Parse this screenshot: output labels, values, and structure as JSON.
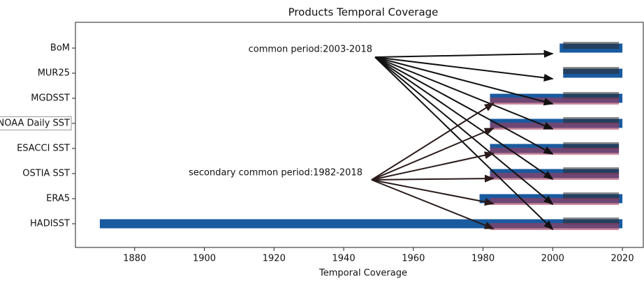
{
  "chart_data": {
    "type": "range_bar",
    "title": "Products Temporal Coverage",
    "xlabel": "Temporal Coverage",
    "categories": [
      "BoM",
      "MUR25",
      "MGDSST",
      "NOAA Daily SST",
      "ESACCI SST",
      "OSTIA SST",
      "ERA5",
      "HADISST"
    ],
    "highlight_category": 3,
    "xlim": [
      1863,
      2026
    ],
    "xticks": [
      1880,
      1900,
      1920,
      1940,
      1960,
      1980,
      2000,
      2020
    ],
    "series": [
      {
        "color": "#1a5a9e",
        "opacity": 1,
        "start": [
          2002,
          2003,
          1982,
          1982,
          1982,
          1982,
          1979,
          1870
        ],
        "end": [
          2020,
          2020,
          2020,
          2020,
          2019,
          2019,
          2020,
          2020
        ]
      },
      {
        "color": "#2b2b2b",
        "opacity": 0.55,
        "start": [
          2003,
          2003,
          2003,
          2003,
          2003,
          2003,
          2003,
          2003
        ],
        "end": [
          2019,
          2019,
          2019,
          2019,
          2019,
          2019,
          2019,
          2019
        ]
      },
      {
        "color": "#a63a5a",
        "opacity": 0.6,
        "start": [
          null,
          null,
          1982,
          1982,
          1982,
          1982,
          1982,
          1982
        ],
        "end": [
          null,
          null,
          2019,
          2019,
          2019,
          2019,
          2019,
          2019
        ]
      }
    ],
    "annotations": [
      {
        "text": "common period:2003-2018",
        "arrow_x": 2000,
        "targets": [
          0,
          1,
          2,
          3,
          4,
          5,
          6,
          7
        ],
        "color": "#111111"
      },
      {
        "text": "secondary common period:1982-2018",
        "arrow_x": 1983,
        "targets": [
          2,
          3,
          4,
          5,
          6,
          7
        ],
        "color": "#2a1a1a"
      }
    ]
  }
}
